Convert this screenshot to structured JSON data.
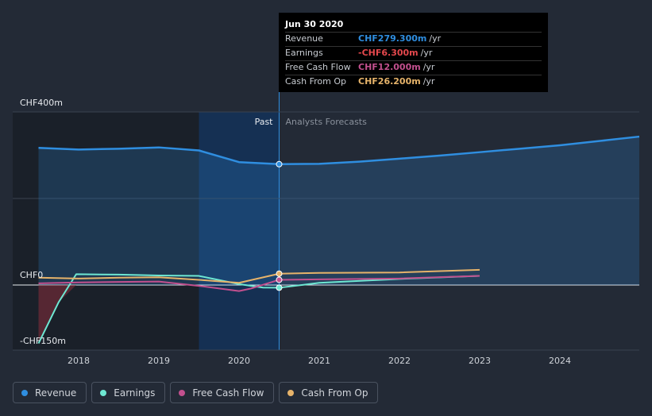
{
  "chart_data": {
    "type": "line",
    "x_domain": [
      2017.0,
      2025.0
    ],
    "y_domain": [
      -150,
      400
    ],
    "y_tick_labels": [
      {
        "value": 400,
        "label": "CHF400m"
      },
      {
        "value": 0,
        "label": "CHF0"
      },
      {
        "value": -150,
        "label": "-CHF150m"
      }
    ],
    "x_ticks": [
      {
        "value": 2018,
        "label": "2018"
      },
      {
        "value": 2019,
        "label": "2019"
      },
      {
        "value": 2020,
        "label": "2020"
      },
      {
        "value": 2021,
        "label": "2021"
      },
      {
        "value": 2022,
        "label": "2022"
      },
      {
        "value": 2023,
        "label": "2023"
      },
      {
        "value": 2024,
        "label": "2024"
      }
    ],
    "past_label": "Past",
    "forecast_label": "Analysts Forecasts",
    "split_x": 2020.5,
    "highlight_start_x": 2019.5,
    "series": [
      {
        "name": "Revenue",
        "color": "#2f8ee0",
        "points": [
          [
            2017.5,
            317
          ],
          [
            2018.0,
            313
          ],
          [
            2018.5,
            315
          ],
          [
            2019.0,
            318
          ],
          [
            2019.5,
            311
          ],
          [
            2020.0,
            284
          ],
          [
            2020.5,
            279.3
          ],
          [
            2021.0,
            280
          ],
          [
            2021.5,
            285
          ],
          [
            2022.0,
            292
          ],
          [
            2022.5,
            299
          ],
          [
            2023.0,
            307
          ],
          [
            2023.5,
            315
          ],
          [
            2024.0,
            323
          ],
          [
            2024.5,
            333
          ],
          [
            2024.99,
            343
          ]
        ]
      },
      {
        "name": "Earnings",
        "color": "#6ee7d2",
        "points": [
          [
            2017.5,
            -135
          ],
          [
            2017.75,
            -40
          ],
          [
            2017.97,
            25
          ],
          [
            2018.5,
            24
          ],
          [
            2019.0,
            22
          ],
          [
            2019.5,
            21
          ],
          [
            2020.0,
            2
          ],
          [
            2020.3,
            -6
          ],
          [
            2020.5,
            -6.3
          ],
          [
            2021.0,
            5
          ],
          [
            2022.0,
            14
          ],
          [
            2023.0,
            21
          ]
        ]
      },
      {
        "name": "Free Cash Flow",
        "color": "#c2508e",
        "points": [
          [
            2017.5,
            4
          ],
          [
            2018.0,
            6
          ],
          [
            2018.5,
            7
          ],
          [
            2019.0,
            8
          ],
          [
            2019.5,
            -2
          ],
          [
            2020.0,
            -14
          ],
          [
            2020.15,
            -8
          ],
          [
            2020.5,
            12.0
          ],
          [
            2021.0,
            13
          ],
          [
            2022.0,
            15
          ],
          [
            2023.0,
            21
          ]
        ]
      },
      {
        "name": "Cash From Op",
        "color": "#e6b36a",
        "points": [
          [
            2017.5,
            17
          ],
          [
            2018.0,
            15
          ],
          [
            2018.5,
            17
          ],
          [
            2019.0,
            18
          ],
          [
            2019.5,
            12
          ],
          [
            2020.0,
            5
          ],
          [
            2020.5,
            26.2
          ],
          [
            2021.0,
            28
          ],
          [
            2022.0,
            29
          ],
          [
            2023.0,
            35
          ]
        ]
      }
    ]
  },
  "tooltip": {
    "date": "Jun 30 2020",
    "rows": [
      {
        "label": "Revenue",
        "value": "CHF279.300m",
        "unit": "/yr",
        "color": "#2f8ee0"
      },
      {
        "label": "Earnings",
        "value": "-CHF6.300m",
        "unit": "/yr",
        "color": "#e5484d"
      },
      {
        "label": "Free Cash Flow",
        "value": "CHF12.000m",
        "unit": "/yr",
        "color": "#c2508e"
      },
      {
        "label": "Cash From Op",
        "value": "CHF26.200m",
        "unit": "/yr",
        "color": "#e6b36a"
      }
    ]
  },
  "legend": [
    {
      "label": "Revenue",
      "color": "#2f8ee0"
    },
    {
      "label": "Earnings",
      "color": "#6ee7d2"
    },
    {
      "label": "Free Cash Flow",
      "color": "#c2508e"
    },
    {
      "label": "Cash From Op",
      "color": "#e6b36a"
    }
  ]
}
